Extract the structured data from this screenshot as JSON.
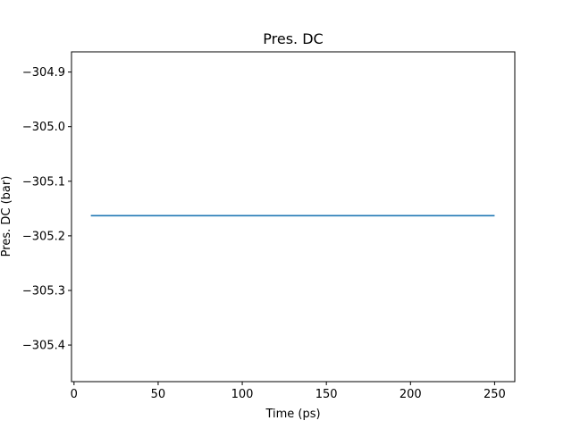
{
  "chart_data": {
    "type": "line",
    "title": "Pres. DC",
    "xlabel": "Time (ps)",
    "ylabel": "Pres. DC (bar)",
    "xlim": [
      -1.5,
      262
    ],
    "ylim": [
      -305.467,
      -304.863
    ],
    "xticks": [
      0,
      50,
      100,
      150,
      200,
      250
    ],
    "xtick_labels": [
      "0",
      "50",
      "100",
      "150",
      "200",
      "250"
    ],
    "yticks": [
      -304.9,
      -305.0,
      -305.1,
      -305.2,
      -305.3,
      -305.4
    ],
    "ytick_labels": [
      "−304.9",
      "−305.0",
      "−305.1",
      "−305.2",
      "−305.3",
      "−305.4"
    ],
    "grid": false,
    "series": [
      {
        "color": "#1f77b4",
        "x": [
          10,
          250
        ],
        "y": [
          -305.163,
          -305.163
        ]
      }
    ]
  }
}
